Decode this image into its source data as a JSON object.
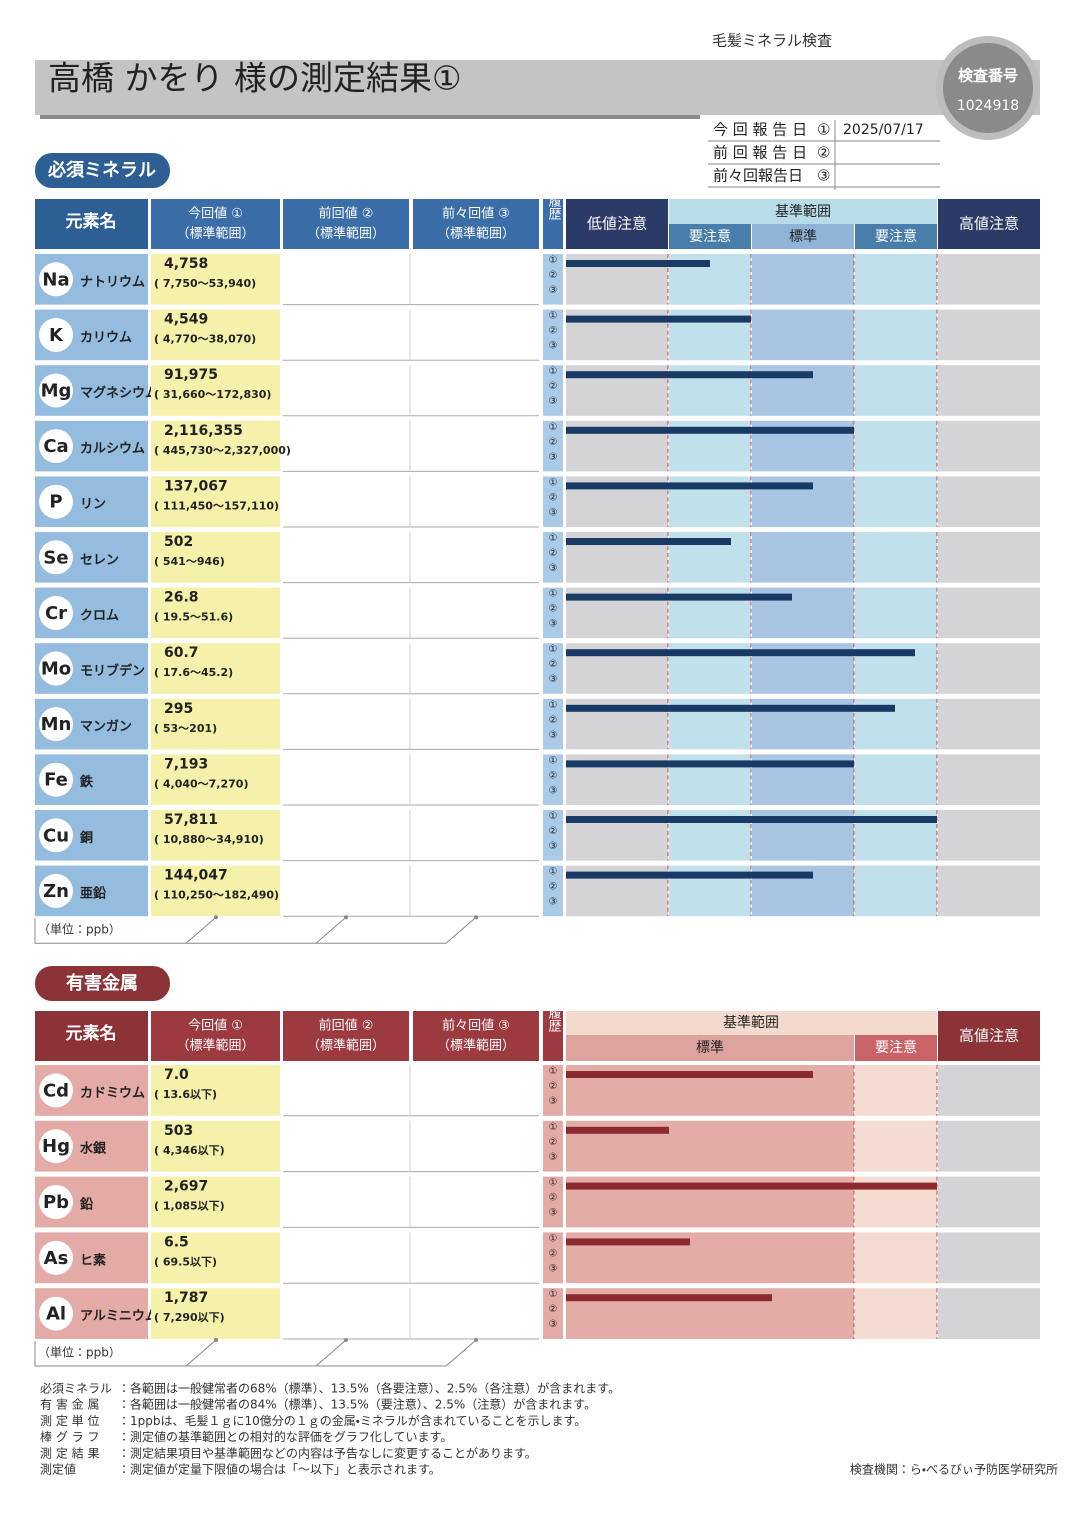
{
  "header": {
    "category": "毛髪ミネラル検査",
    "title": "高橋 かをり 様の測定結果①",
    "exam_no_label": "検査番号",
    "exam_no": "1024918"
  },
  "report_dates": [
    {
      "label": "今 回 報 告 日",
      "mark": "①",
      "date": "2025/07/17"
    },
    {
      "label": "前 回 報 告 日",
      "mark": "②"
    },
    {
      "label": "前々回報告日",
      "mark": "③"
    }
  ],
  "essential": {
    "title": "必須ミネラル",
    "col_element": "元素名",
    "col_current": [
      "今回値 ①",
      "（標準範囲）"
    ],
    "col_prev": [
      "前回値 ②",
      "（標準範囲）"
    ],
    "col_prev2": [
      "前々回値 ③",
      "（標準範囲）"
    ],
    "col_history": "履歴",
    "low": "低値注意",
    "range": "基準範囲",
    "sub": [
      "要注意",
      "標準",
      "要注意"
    ],
    "high": "高値注意",
    "history_marks": [
      "①",
      "②",
      "③"
    ],
    "rows": [
      {
        "symbol": "Na",
        "name": "ナトリウム",
        "value": "4,758",
        "range": "( 7,750～53,940)"
      },
      {
        "symbol": "K",
        "name": "カリウム",
        "value": "4,549",
        "range": "( 4,770～38,070)"
      },
      {
        "symbol": "Mg",
        "name": "マグネシウム",
        "value": "91,975",
        "range": "( 31,660～172,830)"
      },
      {
        "symbol": "Ca",
        "name": "カルシウム",
        "value": "2,116,355",
        "range": "( 445,730～2,327,000)"
      },
      {
        "symbol": "P",
        "name": "リン",
        "value": "137,067",
        "range": "( 111,450～157,110)"
      },
      {
        "symbol": "Se",
        "name": "セレン",
        "value": "502",
        "range": "( 541～946)"
      },
      {
        "symbol": "Cr",
        "name": "クロム",
        "value": "26.8",
        "range": "( 19.5～51.6)"
      },
      {
        "symbol": "Mo",
        "name": "モリブデン",
        "value": "60.7",
        "range": "( 17.6～45.2)"
      },
      {
        "symbol": "Mn",
        "name": "マンガン",
        "value": "295",
        "range": "( 53～201)"
      },
      {
        "symbol": "Fe",
        "name": "鉄",
        "value": "7,193",
        "range": "( 4,040～7,270)"
      },
      {
        "symbol": "Cu",
        "name": "銅",
        "value": "57,811",
        "range": "( 10,880～34,910)"
      },
      {
        "symbol": "Zn",
        "name": "亜鉛",
        "value": "144,047",
        "range": "( 110,250～182,490)"
      }
    ],
    "unit": "（単位：ppb）"
  },
  "harmful": {
    "title": "有害金属",
    "col_element": "元素名",
    "col_current": [
      "今回値 ①",
      "（標準範囲）"
    ],
    "col_prev": [
      "前回値 ②",
      "（標準範囲）"
    ],
    "col_prev2": [
      "前々回値 ③",
      "（標準範囲）"
    ],
    "col_history": "履歴",
    "range": "基準範囲",
    "sub": [
      "標準",
      "要注意"
    ],
    "high": "高値注意",
    "history_marks": [
      "①",
      "②",
      "③"
    ],
    "rows": [
      {
        "symbol": "Cd",
        "name": "カドミウム",
        "value": "7.0",
        "range": "( 13.6以下)"
      },
      {
        "symbol": "Hg",
        "name": "水銀",
        "value": "503",
        "range": "( 4,346以下)"
      },
      {
        "symbol": "Pb",
        "name": "鉛",
        "value": "2,697",
        "range": "( 1,085以下)"
      },
      {
        "symbol": "As",
        "name": "ヒ素",
        "value": "6.5",
        "range": "( 69.5以下)"
      },
      {
        "symbol": "Al",
        "name": "アルミニウム",
        "value": "1,787",
        "range": "( 7,290以下)"
      }
    ],
    "unit": "（単位：ppb）"
  },
  "notes": [
    {
      "label": "必須ミネラル",
      "text": "：各範囲は一般健常者の68%（標準）、13.5%（各要注意）、2.5%（各注意）が含まれます。"
    },
    {
      "label": "有 害 金 属",
      "text": "：各範囲は一般健常者の84%（標準）、13.5%（要注意）、2.5%（注意）が含まれます。"
    },
    {
      "label": "測 定 単 位",
      "text": "：1ppbは、毛髪１ｇに10億分の１ｇの金属・ミネラルが含まれていることを示します。"
    },
    {
      "label": "棒 グ ラ フ",
      "text": "：測定値の基準範囲との相対的な評価をグラフ化しています。"
    },
    {
      "label": "測 定 結 果",
      "text": "：測定結果項目や基準範囲などの内容は予告なしに変更することがあります。"
    },
    {
      "label": "測定値",
      "text": "：測定値が定量下限値の場合は「～以下」と表示されます。"
    }
  ],
  "lab": "検査機関：ら・べるびぃ予防医学研究所"
}
